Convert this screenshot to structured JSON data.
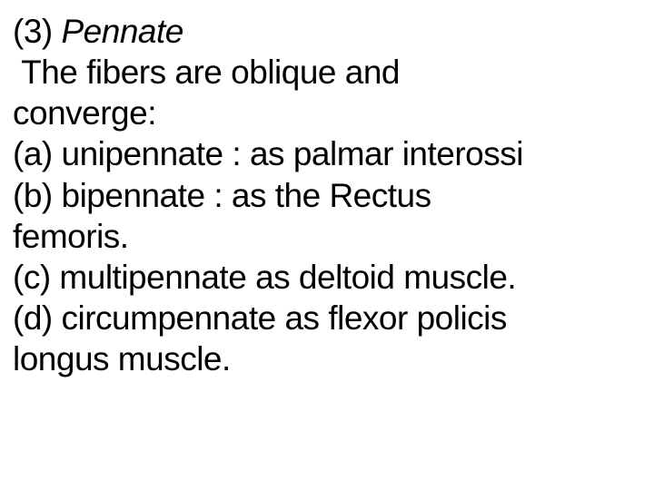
{
  "document": {
    "headingNumber": "(3) ",
    "headingTerm": "Pennate",
    "introLine1": " The fibers are oblique and",
    "introLine2": "converge:",
    "itemA_line1": "(a) unipennate : as palmar interossi",
    "itemB_line1": "(b) bipennate : as the Rectus",
    "itemB_line2": "femoris.",
    "itemC_line1": "(c) multipennate as deltoid muscle.",
    "itemD_line1": "(d) circumpennate as flexor policis",
    "itemD_line2": "longus muscle."
  },
  "style": {
    "backgroundColor": "#ffffff",
    "textColor": "#000000",
    "fontSize": 37,
    "fontFamily": "Arial",
    "lineHeight": 1.22
  }
}
